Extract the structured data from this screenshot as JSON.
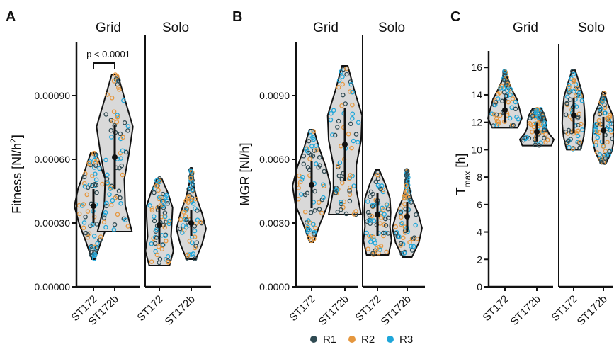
{
  "legend": {
    "items": [
      {
        "label": "R1",
        "color": "#2f4a52"
      },
      {
        "label": "R2",
        "color": "#e5973f"
      },
      {
        "label": "R3",
        "color": "#1fa6d9"
      }
    ]
  },
  "chart_data": [
    {
      "panel": "A",
      "type": "violin",
      "ylabel": "Fitness [Nl/h",
      "ylabel_sup": "2",
      "ylabel_end": "]",
      "ylim": [
        0,
        0.00115
      ],
      "yticks": [
        0,
        0.0003,
        0.0006,
        0.0009
      ],
      "yticklabels": [
        "0.00000",
        "0.00030",
        "0.00060",
        "0.00090"
      ],
      "groups": [
        {
          "name": "Grid",
          "categories": [
            {
              "label": "ST172",
              "min": 0.00013,
              "q1": 0.00033,
              "median": 0.00038,
              "q3": 0.00045,
              "max": 0.00063,
              "mean": 0.00038,
              "sd": 8e-05,
              "widths": [
                0.08,
                0.4,
                0.75,
                1.0,
                0.8,
                0.45,
                0.15
              ]
            },
            {
              "label": "ST172b",
              "min": 0.00026,
              "q1": 0.0005,
              "median": 0.00061,
              "q3": 0.0007,
              "max": 0.001,
              "mean": 0.00061,
              "sd": 0.00015,
              "widths": [
                0.9,
                0.55,
                0.5,
                0.75,
                0.95,
                0.55,
                0.15
              ]
            }
          ]
        },
        {
          "name": "Solo",
          "categories": [
            {
              "label": "ST172",
              "min": 0.0001,
              "q1": 0.0002,
              "median": 0.00029,
              "q3": 0.00036,
              "max": 0.00051,
              "mean": 0.00029,
              "sd": 9e-05,
              "widths": [
                0.65,
                0.9,
                0.75,
                0.8,
                0.85,
                0.55,
                0.15
              ]
            },
            {
              "label": "ST172b",
              "min": 0.00013,
              "q1": 0.00024,
              "median": 0.0003,
              "q3": 0.00034,
              "max": 0.00056,
              "mean": 0.0003,
              "sd": 6e-05,
              "widths": [
                0.3,
                0.7,
                0.95,
                0.7,
                0.35,
                0.12,
                0.05
              ]
            }
          ]
        }
      ],
      "annotation": {
        "text": "p < 0.0001"
      }
    },
    {
      "panel": "B",
      "type": "violin",
      "ylabel": "MGR [Nl/h]",
      "ylim": [
        0,
        0.0115
      ],
      "yticks": [
        0,
        0.003,
        0.006,
        0.009
      ],
      "yticklabels": [
        "0.0000",
        "0.0030",
        "0.0060",
        "0.0090"
      ],
      "groups": [
        {
          "name": "Grid",
          "categories": [
            {
              "label": "ST172",
              "min": 0.0021,
              "q1": 0.0042,
              "median": 0.0048,
              "q3": 0.0055,
              "max": 0.0074,
              "mean": 0.0048,
              "sd": 0.0011,
              "widths": [
                0.1,
                0.45,
                0.85,
                1.0,
                0.75,
                0.4,
                0.12
              ]
            },
            {
              "label": "ST172b",
              "min": 0.0034,
              "q1": 0.0058,
              "median": 0.0067,
              "q3": 0.0076,
              "max": 0.0104,
              "mean": 0.0067,
              "sd": 0.0017,
              "widths": [
                0.85,
                0.6,
                0.6,
                0.85,
                0.9,
                0.5,
                0.15
              ]
            }
          ]
        },
        {
          "name": "Solo",
          "categories": [
            {
              "label": "ST172",
              "min": 0.0015,
              "q1": 0.0026,
              "median": 0.0034,
              "q3": 0.0041,
              "max": 0.0055,
              "mean": 0.0034,
              "sd": 0.001,
              "widths": [
                0.7,
                0.9,
                0.8,
                0.85,
                0.8,
                0.5,
                0.12
              ]
            },
            {
              "label": "ST172b",
              "min": 0.0014,
              "q1": 0.0028,
              "median": 0.0033,
              "q3": 0.0037,
              "max": 0.0055,
              "mean": 0.0033,
              "sd": 0.0007,
              "widths": [
                0.3,
                0.75,
                0.95,
                0.7,
                0.3,
                0.1,
                0.05
              ]
            }
          ]
        }
      ]
    },
    {
      "panel": "C",
      "type": "violin",
      "ylabel": "T",
      "ylabel_sub": "max",
      "ylabel_end": " [h]",
      "ylim": [
        0,
        17.2
      ],
      "yticks": [
        0,
        2,
        4,
        6,
        8,
        10,
        12,
        14,
        16
      ],
      "yticklabels": [
        "0",
        "2",
        "4",
        "6",
        "8",
        "10",
        "12",
        "14",
        "16"
      ],
      "groups": [
        {
          "name": "Grid",
          "categories": [
            {
              "label": "ST172",
              "min": 11.6,
              "q1": 12.2,
              "median": 12.8,
              "q3": 13.6,
              "max": 15.8,
              "mean": 12.9,
              "sd": 0.9,
              "widths": [
                0.75,
                1.0,
                0.85,
                0.7,
                0.4,
                0.15,
                0.05
              ]
            },
            {
              "label": "ST172b",
              "min": 10.3,
              "q1": 10.8,
              "median": 11.2,
              "q3": 11.9,
              "max": 13.0,
              "mean": 11.3,
              "sd": 0.7,
              "widths": [
                0.85,
                1.0,
                0.7,
                0.55,
                0.55,
                0.45,
                0.25
              ]
            }
          ]
        },
        {
          "name": "Solo",
          "categories": [
            {
              "label": "ST172",
              "min": 10.0,
              "q1": 11.5,
              "median": 12.5,
              "q3": 13.7,
              "max": 15.8,
              "mean": 12.5,
              "sd": 1.3,
              "widths": [
                0.55,
                0.8,
                0.9,
                0.85,
                0.75,
                0.45,
                0.12
              ]
            },
            {
              "label": "ST172b",
              "min": 9.0,
              "q1": 10.4,
              "median": 11.2,
              "q3": 12.3,
              "max": 14.2,
              "mean": 11.4,
              "sd": 1.0,
              "widths": [
                0.2,
                0.65,
                0.85,
                0.8,
                0.75,
                0.35,
                0.08
              ]
            }
          ]
        }
      ]
    }
  ]
}
